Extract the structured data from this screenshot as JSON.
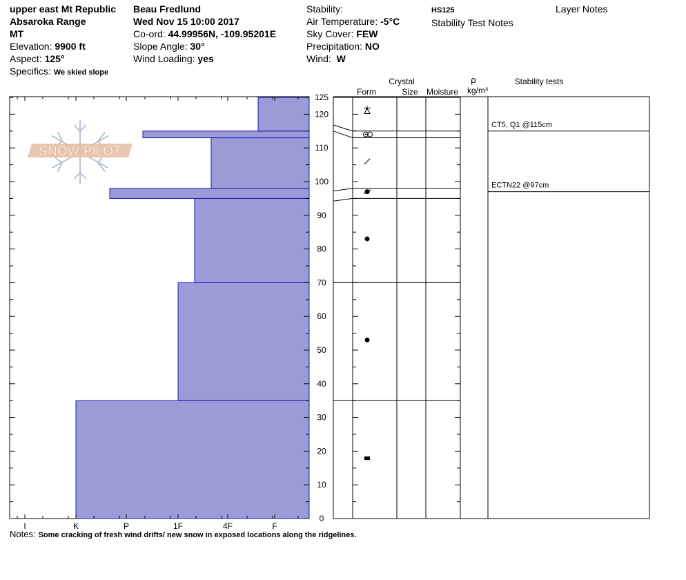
{
  "header": {
    "location": "upper east Mt Republic",
    "range": "Absaroka Range",
    "state": "MT",
    "elevation_label": "Elevation:",
    "elevation": "9900 ft",
    "aspect_label": "Aspect:",
    "aspect": "125°",
    "specifics_label": "Specifics:",
    "specifics": "We skied slope",
    "observer": "Beau  Fredlund",
    "datetime": "Wed Nov 15 10:00 2017",
    "coord_label": "Co-ord:",
    "coord": "44.99956N, -109.95201E",
    "slope_label": "Slope Angle:",
    "slope": "30°",
    "wind_loading_label": "Wind Loading:",
    "wind_loading": "yes",
    "stability_label": "Stability:",
    "air_temp_label": "Air Temperature:",
    "air_temp": "-5°C",
    "sky_label": "Sky Cover:",
    "sky": "FEW",
    "precip_label": "Precipitation:",
    "precip": "NO",
    "wind_label": "Wind:",
    "wind": "W",
    "hs": "HS125",
    "stability_notes": "Stability Test Notes",
    "layer_notes": "Layer Notes"
  },
  "columns": {
    "crystal": "Crystal",
    "form": "Form",
    "size": "Size",
    "moisture": "Moisture",
    "rho": "ρ",
    "density_unit": "kg/m³",
    "stability_tests": "Stability tests"
  },
  "logo_text": "SNOW PILOT",
  "stability_tests": [
    {
      "text": "CT5, Q1 @115cm",
      "depth": 115
    },
    {
      "text": "ECTN22 @97cm",
      "depth": 97
    }
  ],
  "notes_label": "Notes:",
  "notes": "Some cracking of fresh wind drifts/ new snow in exposed locations along the ridgelines.",
  "chart_data": {
    "type": "bar",
    "orientation": "horizontal",
    "ylim": [
      0,
      125
    ],
    "y_ticks": [
      0,
      10,
      20,
      30,
      40,
      50,
      60,
      70,
      80,
      90,
      100,
      110,
      120,
      125
    ],
    "hardness_ticks": [
      "I",
      "K",
      "P",
      "1F",
      "4F",
      "F"
    ],
    "layers": [
      {
        "bottom": 0,
        "top": 35,
        "hardness": "K",
        "form": "melt-freeze",
        "form_depth": 18
      },
      {
        "bottom": 35,
        "top": 70,
        "hardness": "1F",
        "form": "rounded",
        "form_depth": 53
      },
      {
        "bottom": 70,
        "top": 95,
        "hardness": "1F+",
        "form": "rounded",
        "form_depth": 83
      },
      {
        "bottom": 95,
        "top": 98,
        "hardness": "P-",
        "form": "faceted-rounded",
        "form_depth": 97
      },
      {
        "bottom": 98,
        "top": 113,
        "hardness": "4F-",
        "form": "decomposing",
        "form_depth": 106
      },
      {
        "bottom": 113,
        "top": 115,
        "hardness": "P+",
        "form": "surface-hoar",
        "form_depth": 114
      },
      {
        "bottom": 115,
        "top": 125,
        "hardness": "F-",
        "form": "precipitation",
        "form_depth": 121
      }
    ],
    "colors": {
      "bar": "#9b9bd7",
      "bar_edge": "#1a1ab0"
    }
  }
}
